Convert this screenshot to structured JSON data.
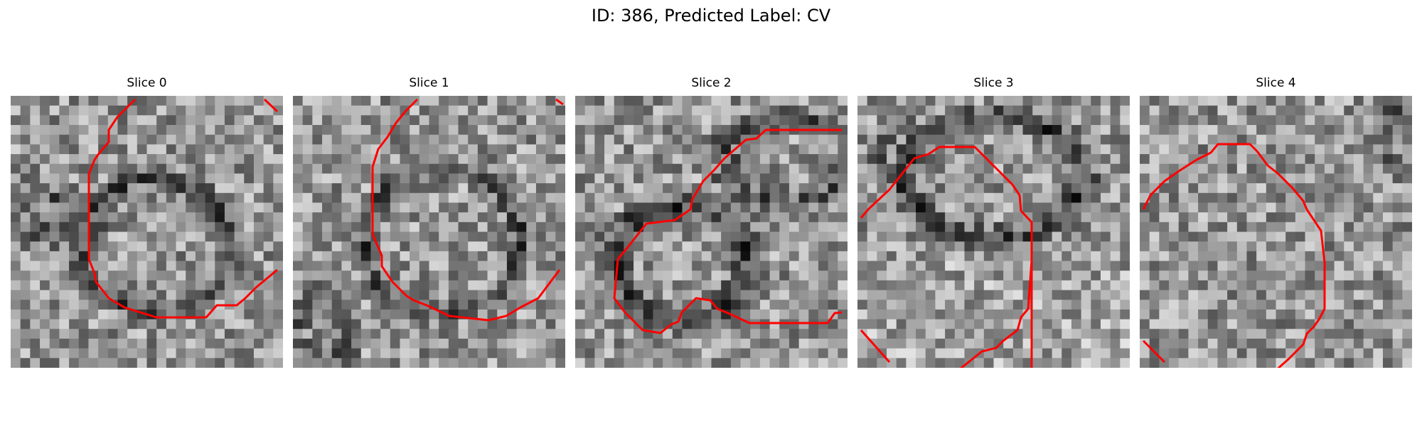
{
  "figure": {
    "title": "ID: 386, Predicted Label: CV"
  },
  "panels": [
    {
      "title": "Slice 0"
    },
    {
      "title": "Slice 1"
    },
    {
      "title": "Slice 2"
    },
    {
      "title": "Slice 3"
    },
    {
      "title": "Slice 4"
    }
  ],
  "overlay": {
    "contour_color": "#ff0000"
  },
  "image": {
    "colormap": "gray",
    "grid_size": 28
  }
}
